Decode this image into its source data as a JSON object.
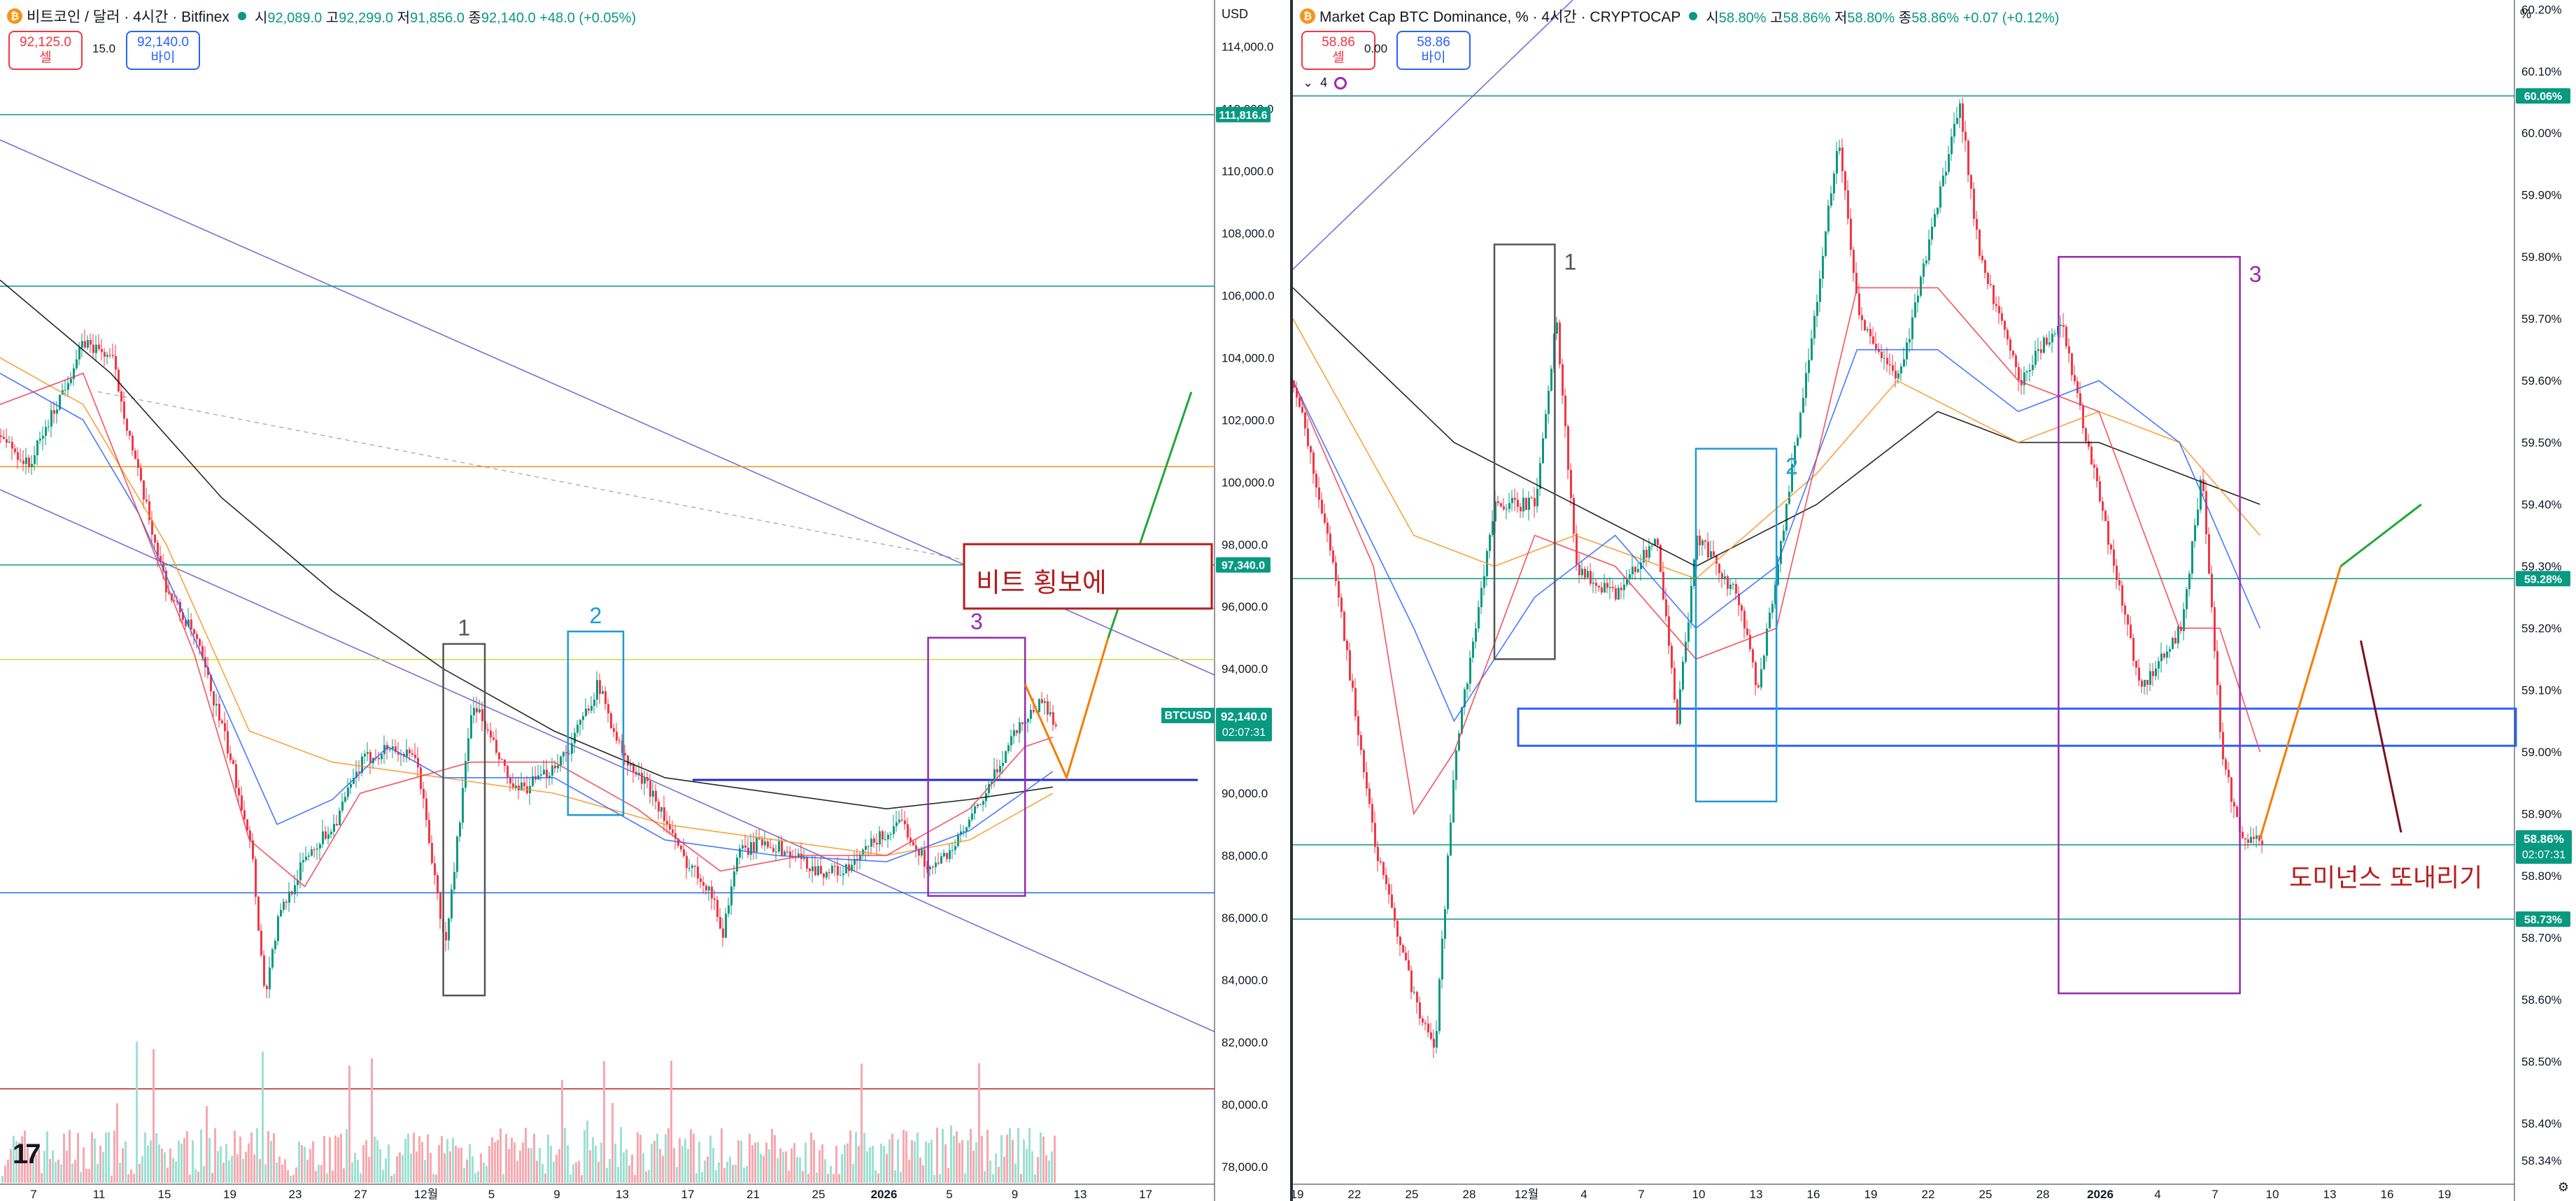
{
  "left": {
    "symbol": "비트코인 / 달러 · 4시간 · Bitfinex",
    "ohlc": {
      "o_label": "시",
      "o": "92,089.0",
      "h_label": "고",
      "h": "92,299.0",
      "l_label": "저",
      "l": "91,856.0",
      "c_label": "종",
      "c": "92,140.0",
      "change": "+48.0 (+0.05%)"
    },
    "sell": {
      "price": "92,125.0",
      "label": "셀"
    },
    "buy": {
      "price": "92,140.0",
      "label": "바이"
    },
    "spread": "15.0",
    "unit": "USD"
  },
  "right": {
    "symbol": "Market Cap BTC Dominance, % · 4시간 · CRYPTOCAP",
    "ohlc": {
      "o_label": "시",
      "o": "58.80%",
      "h_label": "고",
      "h": "58.86%",
      "l_label": "저",
      "l": "58.80%",
      "c_label": "종",
      "c": "58.86%",
      "change": "+0.07 (+0.12%)"
    },
    "sell": {
      "price": "58.86",
      "label": "셀"
    },
    "buy": {
      "price": "58.86",
      "label": "바이"
    },
    "spread": "0.00",
    "indicator_count": "4",
    "unit": "%"
  },
  "chart_data": [
    {
      "type": "candlestick",
      "symbol": "BTCUSD",
      "ylim": [
        77500,
        115500
      ],
      "y_ticks": [
        78000,
        80000,
        82000,
        84000,
        86000,
        88000,
        90000,
        92000,
        94000,
        96000,
        98000,
        100000,
        102000,
        104000,
        106000,
        108000,
        110000,
        112000,
        114000
      ],
      "y_tick_labels": [
        "78,000.0",
        "80,000.0",
        "82,000.0",
        "84,000.0",
        "86,000.0",
        "88,000.0",
        "90,000.0",
        "92,000.0",
        "94,000.0",
        "96,000.0",
        "98,000.0",
        "100,000.0",
        "102,000.0",
        "104,000.0",
        "106,000.0",
        "108,000.0",
        "110,000.0",
        "112,000.0",
        "114,000.0"
      ],
      "x_ticks": [
        "7",
        "11",
        "15",
        "19",
        "23",
        "27",
        "12월",
        "5",
        "9",
        "13",
        "17",
        "21",
        "25",
        "2026",
        "5",
        "9",
        "13",
        "17"
      ],
      "price_path": [
        [
          0,
          101500
        ],
        [
          2,
          100500
        ],
        [
          4,
          102500
        ],
        [
          6,
          104500
        ],
        [
          8,
          104000
        ],
        [
          10,
          100000
        ],
        [
          12,
          96500
        ],
        [
          14,
          95000
        ],
        [
          16,
          92000
        ],
        [
          18,
          88500
        ],
        [
          19,
          83500
        ],
        [
          20,
          86000
        ],
        [
          22,
          88000
        ],
        [
          24,
          89000
        ],
        [
          26,
          91000
        ],
        [
          28,
          91500
        ],
        [
          30,
          91000
        ],
        [
          32,
          85000
        ],
        [
          34,
          93000
        ],
        [
          35,
          92000
        ],
        [
          37,
          90000
        ],
        [
          39,
          90500
        ],
        [
          41,
          91500
        ],
        [
          43,
          93500
        ],
        [
          45,
          91000
        ],
        [
          47,
          90000
        ],
        [
          49,
          88000
        ],
        [
          51,
          87000
        ],
        [
          52,
          85500
        ],
        [
          53,
          88000
        ],
        [
          55,
          88500
        ],
        [
          57,
          88000
        ],
        [
          59,
          87500
        ],
        [
          61,
          87500
        ],
        [
          63,
          88500
        ],
        [
          65,
          89000
        ],
        [
          67,
          87500
        ],
        [
          69,
          88500
        ],
        [
          71,
          90000
        ],
        [
          73,
          92000
        ],
        [
          75,
          93000
        ],
        [
          76,
          92140
        ]
      ],
      "moving_averages": [
        {
          "color": "#000000",
          "points": [
            [
              0,
              106500
            ],
            [
              8,
              103500
            ],
            [
              16,
              99500
            ],
            [
              24,
              96500
            ],
            [
              32,
              94000
            ],
            [
              40,
              92000
            ],
            [
              48,
              90500
            ],
            [
              56,
              90000
            ],
            [
              64,
              89500
            ],
            [
              70,
              89800
            ],
            [
              76,
              90200
            ]
          ]
        },
        {
          "color": "#f7931a",
          "points": [
            [
              0,
              104000
            ],
            [
              6,
              102500
            ],
            [
              12,
              98000
            ],
            [
              18,
              92000
            ],
            [
              24,
              91000
            ],
            [
              32,
              90500
            ],
            [
              40,
              90000
            ],
            [
              48,
              89000
            ],
            [
              56,
              88500
            ],
            [
              64,
              88000
            ],
            [
              70,
              88500
            ],
            [
              76,
              90000
            ]
          ]
        },
        {
          "color": "#2962ff",
          "points": [
            [
              0,
              103500
            ],
            [
              6,
              102000
            ],
            [
              10,
              99000
            ],
            [
              16,
              93000
            ],
            [
              20,
              89000
            ],
            [
              24,
              89800
            ],
            [
              28,
              91500
            ],
            [
              32,
              90500
            ],
            [
              40,
              90500
            ],
            [
              48,
              88500
            ],
            [
              56,
              88000
            ],
            [
              64,
              87800
            ],
            [
              70,
              88800
            ],
            [
              76,
              90700
            ]
          ]
        },
        {
          "color": "#f23645",
          "points": [
            [
              0,
              102500
            ],
            [
              6,
              103500
            ],
            [
              10,
              99000
            ],
            [
              14,
              94500
            ],
            [
              18,
              88500
            ],
            [
              22,
              87000
            ],
            [
              26,
              90000
            ],
            [
              30,
              90500
            ],
            [
              34,
              91000
            ],
            [
              40,
              91000
            ],
            [
              46,
              89500
            ],
            [
              52,
              87500
            ],
            [
              58,
              88000
            ],
            [
              64,
              88000
            ],
            [
              70,
              89500
            ],
            [
              74,
              91500
            ],
            [
              76,
              91800
            ]
          ]
        }
      ],
      "horizontal_levels": [
        {
          "price": 111816.6,
          "label": "111,816.6",
          "color": "#089981"
        },
        {
          "price": 106300,
          "color": "#089981"
        },
        {
          "price": 100500,
          "color": "#f7931a"
        },
        {
          "price": 97340,
          "label": "97,340.0",
          "color": "#089981"
        },
        {
          "price": 94300,
          "color": "#cddc39"
        },
        {
          "price": 86800,
          "color": "#2962ff"
        },
        {
          "price": 80500,
          "color": "#b71c1c"
        }
      ],
      "last_price": {
        "label": "BTCUSD",
        "value": "92,140.0",
        "countdown": "02:07:31"
      },
      "boxes": [
        {
          "label": "1",
          "color": "#555555",
          "x0": 32,
          "x1": 35,
          "y0": 83500,
          "y1": 94800
        },
        {
          "label": "2",
          "color": "#1e9ad6",
          "x0": 41,
          "x1": 45,
          "y0": 89300,
          "y1": 95200
        },
        {
          "label": "3",
          "color": "#9c27b0",
          "x0": 67,
          "x1": 74,
          "y0": 86700,
          "y1": 95000
        }
      ],
      "annotation": {
        "text": "비트 횡보에",
        "color": "#b71c1c"
      },
      "projection": [
        [
          74,
          93500
        ],
        [
          77,
          90500
        ],
        [
          80,
          95000
        ],
        [
          86,
          102900
        ]
      ]
    },
    {
      "type": "candlestick",
      "symbol": "BTC.D",
      "ylim": [
        58.305,
        60.215
      ],
      "y_ticks": [
        58.34,
        58.4,
        58.5,
        58.6,
        58.7,
        58.8,
        58.9,
        59.0,
        59.1,
        59.2,
        59.3,
        59.4,
        59.5,
        59.6,
        59.7,
        59.8,
        59.9,
        60.0,
        60.1,
        60.2
      ],
      "y_tick_labels": [
        "58.34%",
        "58.40%",
        "58.50%",
        "58.60%",
        "58.70%",
        "58.80%",
        "58.90%",
        "59.00%",
        "59.10%",
        "59.20%",
        "59.30%",
        "59.40%",
        "59.50%",
        "59.60%",
        "59.70%",
        "59.80%",
        "59.90%",
        "60.00%",
        "60.10%",
        "60.20%"
      ],
      "x_ticks": [
        "19",
        "22",
        "25",
        "28",
        "12월",
        "4",
        "7",
        "10",
        "13",
        "16",
        "19",
        "22",
        "25",
        "28",
        "2026",
        "4",
        "7",
        "10",
        "13",
        "16",
        "19"
      ],
      "price_path": [
        [
          0,
          59.6
        ],
        [
          2,
          59.3
        ],
        [
          4,
          58.85
        ],
        [
          6,
          58.6
        ],
        [
          7,
          58.52
        ],
        [
          8,
          59.0
        ],
        [
          10,
          59.4
        ],
        [
          12,
          59.4
        ],
        [
          13,
          59.7
        ],
        [
          14,
          59.3
        ],
        [
          16,
          59.25
        ],
        [
          18,
          59.35
        ],
        [
          19,
          59.05
        ],
        [
          20,
          59.35
        ],
        [
          22,
          59.25
        ],
        [
          23,
          59.1
        ],
        [
          24,
          59.3
        ],
        [
          26,
          59.75
        ],
        [
          27,
          60.0
        ],
        [
          28,
          59.7
        ],
        [
          30,
          59.6
        ],
        [
          32,
          59.9
        ],
        [
          33,
          60.05
        ],
        [
          34,
          59.8
        ],
        [
          36,
          59.6
        ],
        [
          38,
          59.7
        ],
        [
          40,
          59.4
        ],
        [
          42,
          59.1
        ],
        [
          44,
          59.2
        ],
        [
          45,
          59.45
        ],
        [
          46,
          59.0
        ],
        [
          47,
          58.85
        ],
        [
          48,
          58.86
        ]
      ],
      "moving_averages": [
        {
          "color": "#000000",
          "points": [
            [
              0,
              59.75
            ],
            [
              8,
              59.5
            ],
            [
              14,
              59.4
            ],
            [
              20,
              59.3
            ],
            [
              26,
              59.4
            ],
            [
              32,
              59.55
            ],
            [
              36,
              59.5
            ],
            [
              40,
              59.5
            ],
            [
              44,
              59.45
            ],
            [
              48,
              59.4
            ]
          ]
        },
        {
          "color": "#f7931a",
          "points": [
            [
              0,
              59.7
            ],
            [
              6,
              59.35
            ],
            [
              10,
              59.3
            ],
            [
              14,
              59.35
            ],
            [
              20,
              59.28
            ],
            [
              26,
              59.45
            ],
            [
              30,
              59.6
            ],
            [
              36,
              59.5
            ],
            [
              40,
              59.55
            ],
            [
              44,
              59.5
            ],
            [
              48,
              59.35
            ]
          ]
        },
        {
          "color": "#2962ff",
          "points": [
            [
              0,
              59.6
            ],
            [
              6,
              59.2
            ],
            [
              8,
              59.05
            ],
            [
              12,
              59.25
            ],
            [
              16,
              59.35
            ],
            [
              20,
              59.2
            ],
            [
              24,
              59.3
            ],
            [
              28,
              59.65
            ],
            [
              32,
              59.65
            ],
            [
              36,
              59.55
            ],
            [
              40,
              59.6
            ],
            [
              44,
              59.5
            ],
            [
              48,
              59.2
            ]
          ]
        },
        {
          "color": "#f23645",
          "points": [
            [
              0,
              59.6
            ],
            [
              4,
              59.3
            ],
            [
              6,
              58.9
            ],
            [
              8,
              59.0
            ],
            [
              12,
              59.35
            ],
            [
              16,
              59.3
            ],
            [
              20,
              59.15
            ],
            [
              24,
              59.2
            ],
            [
              28,
              59.75
            ],
            [
              32,
              59.75
            ],
            [
              36,
              59.6
            ],
            [
              40,
              59.55
            ],
            [
              44,
              59.2
            ],
            [
              46,
              59.2
            ],
            [
              48,
              59.0
            ]
          ]
        }
      ],
      "horizontal_levels": [
        {
          "price": 60.06,
          "label": "60.06%",
          "color": "#089981"
        },
        {
          "price": 59.28,
          "label": "59.28%",
          "color": "#089981"
        },
        {
          "price": 58.85,
          "label": "58.85%",
          "color": "#089981"
        },
        {
          "price": 58.73,
          "label": "58.73%",
          "color": "#089981"
        }
      ],
      "last_price": {
        "value": "58.86%",
        "countdown": "02:07:31"
      },
      "boxes": [
        {
          "label": "1",
          "color": "#555555",
          "x0": 10,
          "x1": 13,
          "y0": 59.15,
          "y1": 59.82
        },
        {
          "label": "2",
          "color": "#1e9ad6",
          "x0": 20,
          "x1": 24,
          "y0": 58.92,
          "y1": 59.49
        },
        {
          "label": "3",
          "color": "#9c27b0",
          "x0": 38,
          "x1": 47,
          "y0": 58.61,
          "y1": 59.8
        }
      ],
      "zone": {
        "color": "#2962ff",
        "y0": 59.01,
        "y1": 59.07
      },
      "annotation": {
        "text": "도미넌스 또내리기",
        "color": "#b71c1c"
      },
      "projection_up": [
        [
          48,
          58.86
        ],
        [
          52,
          59.3
        ],
        [
          56,
          59.4
        ]
      ],
      "projection_down": [
        [
          53,
          59.18
        ],
        [
          55,
          58.87
        ]
      ]
    }
  ]
}
